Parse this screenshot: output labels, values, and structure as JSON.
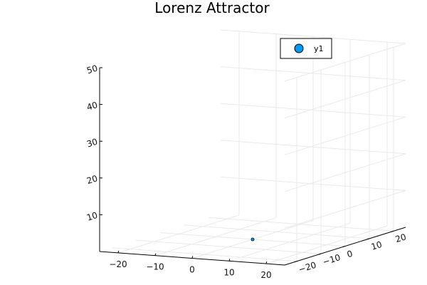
{
  "chart_data": {
    "type": "scatter",
    "title": "Lorenz Attractor",
    "series": [
      {
        "name": "y1",
        "x": [
          0
        ],
        "y": [
          0
        ],
        "z": [
          0
        ]
      }
    ],
    "xlim": [
      -25,
      25
    ],
    "ylim": [
      -25,
      25
    ],
    "zlim": [
      0,
      50
    ],
    "x_ticks": [
      "−20",
      "−10",
      "0",
      "10",
      "20"
    ],
    "y_ticks": [
      "−20",
      "−10",
      "0",
      "10",
      "20"
    ],
    "z_ticks": [
      "10",
      "20",
      "30",
      "40",
      "50"
    ],
    "grid": true,
    "legend_position": "top-right",
    "colors": {
      "marker": "#009AFA",
      "marker_stroke": "#000000"
    }
  }
}
